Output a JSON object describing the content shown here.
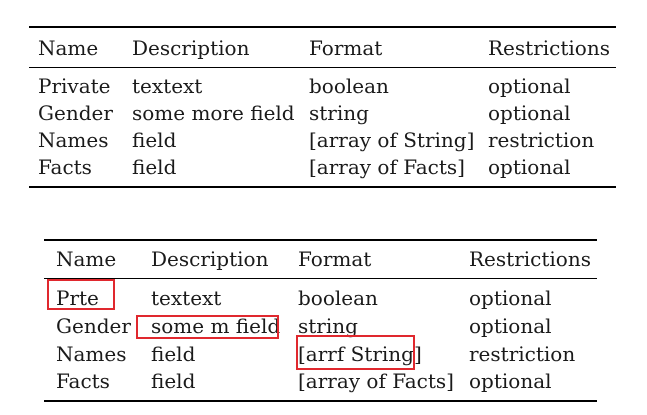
{
  "table1": {
    "headers": [
      "Name",
      "Description",
      "Format",
      "Restrictions"
    ],
    "rows": [
      [
        "Private",
        "textext",
        "boolean",
        "optional"
      ],
      [
        "Gender",
        "some more field",
        "string",
        "optional"
      ],
      [
        "Names",
        "field",
        "[array of String]",
        "restriction"
      ],
      [
        "Facts",
        "field",
        "[array of Facts]",
        "optional"
      ]
    ]
  },
  "table2": {
    "headers": [
      "Name",
      "Description",
      "Format",
      "Restrictions"
    ],
    "rows": [
      [
        "Prte",
        "textext",
        "boolean",
        "optional"
      ],
      [
        "Gender",
        "some m field",
        "string",
        "optional"
      ],
      [
        "Names",
        "field",
        "[arrf String]",
        "restriction"
      ],
      [
        "Facts",
        "field",
        "[array of Facts]",
        "optional"
      ]
    ],
    "highlight_color": "#e0282e"
  }
}
